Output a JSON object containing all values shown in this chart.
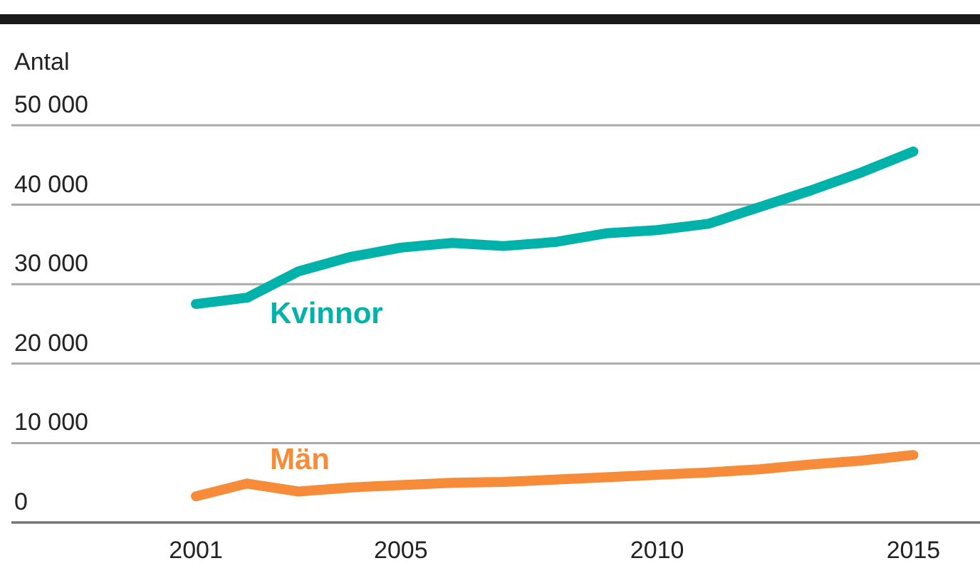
{
  "chart_data": {
    "type": "line",
    "ylabel": "Antal",
    "x": [
      2001,
      2002,
      2003,
      2004,
      2005,
      2006,
      2007,
      2008,
      2009,
      2010,
      2011,
      2012,
      2013,
      2014,
      2015
    ],
    "series": [
      {
        "name": "Kvinnor",
        "color": "#00b2a9",
        "values": [
          27500,
          28300,
          31600,
          33400,
          34600,
          35200,
          34800,
          35300,
          36400,
          36800,
          37600,
          39700,
          41800,
          44100,
          46700
        ]
      },
      {
        "name": "Män",
        "color": "#f68c3a",
        "values": [
          3300,
          4900,
          3900,
          4400,
          4700,
          5000,
          5100,
          5400,
          5700,
          6000,
          6300,
          6700,
          7300,
          7800,
          8500
        ]
      }
    ],
    "xlim": [
      1997.4,
      2016.3
    ],
    "xticks": [
      2001,
      2005,
      2010,
      2015
    ],
    "ylim": [
      0,
      50000
    ],
    "yticks": [
      {
        "value": 0,
        "label": "0"
      },
      {
        "value": 10000,
        "label": "10 000"
      },
      {
        "value": 20000,
        "label": "20 000"
      },
      {
        "value": 30000,
        "label": "30 000"
      },
      {
        "value": 40000,
        "label": "40 000"
      },
      {
        "value": 50000,
        "label": "50 000"
      }
    ],
    "grid": "y",
    "legend": false,
    "marker": "none",
    "line_style": "solid"
  }
}
